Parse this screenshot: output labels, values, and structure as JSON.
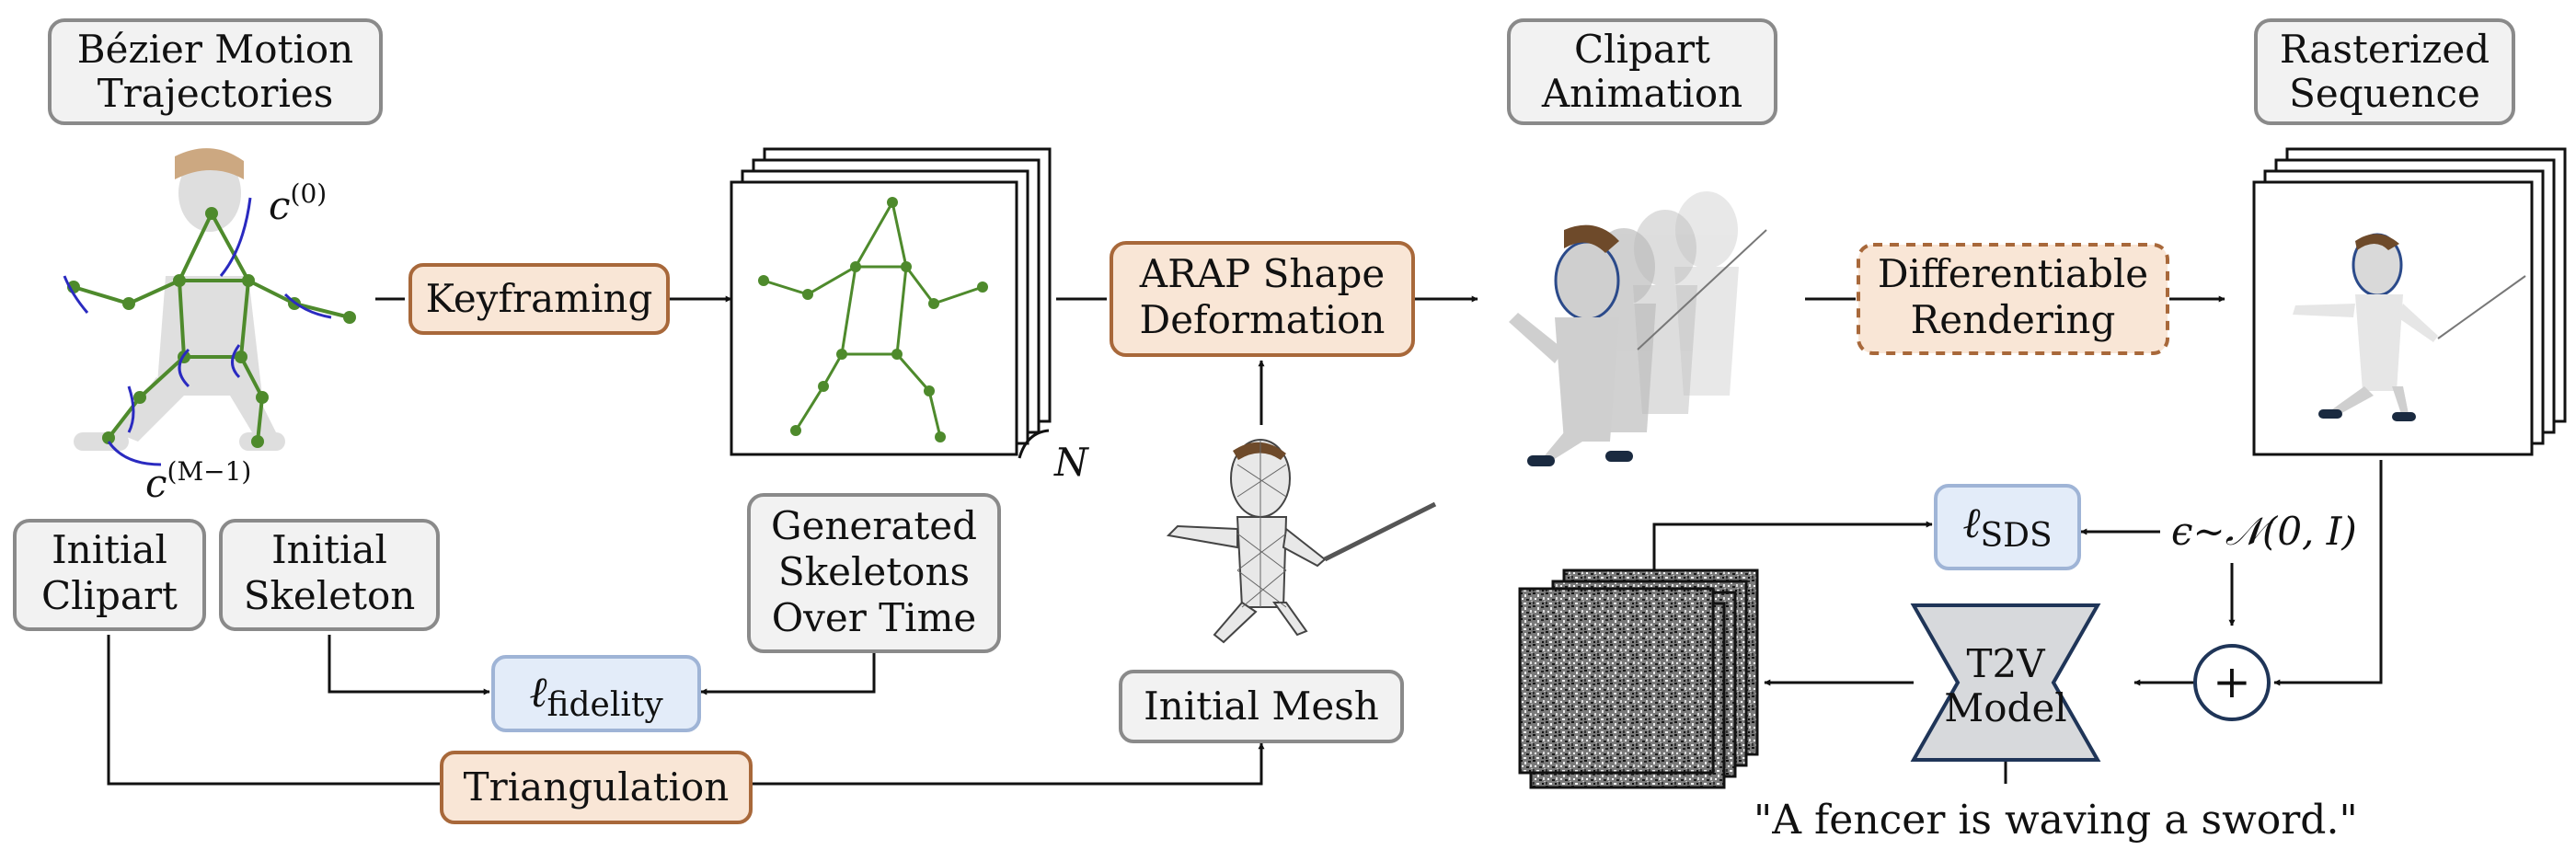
{
  "boxes": {
    "bezier": [
      "Bézier Motion",
      "Trajectories"
    ],
    "keyframing": "Keyframing",
    "arap": [
      "ARAP Shape",
      "Deformation"
    ],
    "clipart_animation": [
      "Clipart",
      "Animation"
    ],
    "diff_rendering": [
      "Differentiable",
      "Rendering"
    ],
    "rasterized": [
      "Rasterized",
      "Sequence"
    ],
    "initial_clipart": [
      "Initial",
      "Clipart"
    ],
    "initial_skeleton": [
      "Initial",
      "Skeleton"
    ],
    "generated_skeletons": [
      "Generated",
      "Skeletons",
      "Over Time"
    ],
    "initial_mesh": "Initial Mesh",
    "triangulation": "Triangulation",
    "t2v_model": [
      "T2V",
      "Model"
    ]
  },
  "losses": {
    "fidelity": {
      "symbol": "ℓ",
      "sub": "fidelity"
    },
    "sds": {
      "symbol": "ℓ",
      "sub": "SDS"
    }
  },
  "math": {
    "c0": {
      "base": "c",
      "sup": "(0)"
    },
    "cM": {
      "base": "c",
      "sup": "(M−1)"
    },
    "N": "N",
    "noise": "ϵ∼𝒩(0, I)",
    "plus": "+"
  },
  "prompt": "\"A fencer is waving a sword.\"",
  "colors": {
    "gray_fill": "#f2f2f2",
    "gray_stroke": "#8a8a8a",
    "orange_fill": "#f9e6d6",
    "orange_stroke": "#a8683a",
    "blue_fill": "#e3ecf9",
    "blue_stroke": "#9fb4d6",
    "skeleton_green": "#4e8a2c",
    "curve_blue": "#2a2ac0",
    "t2v_fill": "#d7d9dc",
    "t2v_stroke": "#1f3558"
  }
}
